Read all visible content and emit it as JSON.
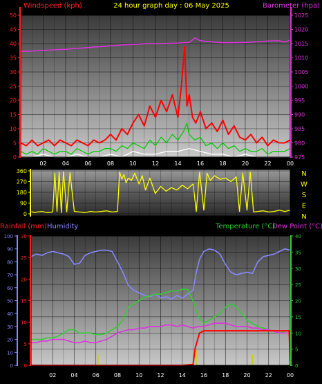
{
  "header": {
    "title": "24 hour graph day : 06 May 2025"
  },
  "colors": {
    "wind_gust": "#ff0000",
    "wind_avg": "#00cc00",
    "wind_min": "#ffffff",
    "barometer": "#dd33dd",
    "direction": "#ffff00",
    "rainfall": "#ff0000",
    "humidity": "#8888ff",
    "temperature": "#33cc33",
    "dewpoint": "#dd33dd",
    "rain_rate": "#cccc00"
  },
  "chart_data": [
    {
      "name": "wind-barometer",
      "type": "line",
      "title": "24 hour graph day : 06 May 2025",
      "ylabel_left": "Windspeed (kph)",
      "ylabel_right": "Barometer (hpa)",
      "yticks_left": [
        "0",
        "5",
        "10",
        "15",
        "20",
        "25",
        "30",
        "35",
        "40",
        "45",
        "50"
      ],
      "yticks_right": [
        "975",
        "980",
        "985",
        "990",
        "995",
        "1000",
        "1005",
        "1010",
        "1015",
        "1020",
        "1025"
      ],
      "ylim_left": [
        0,
        50
      ],
      "ylim_right": [
        975,
        1025
      ],
      "xlim": [
        0,
        24
      ],
      "xticks": [
        "02",
        "04",
        "06",
        "08",
        "10",
        "12",
        "14",
        "16",
        "18",
        "20",
        "22",
        "00"
      ],
      "grid": true,
      "series": [
        {
          "key": "barometer",
          "axis": "right",
          "x": [
            0,
            1,
            2,
            3,
            4,
            5,
            6,
            7,
            8,
            9,
            10,
            11,
            12,
            13,
            14,
            15,
            15.5,
            16,
            17,
            18,
            19,
            20,
            21,
            22,
            23,
            23.5,
            24
          ],
          "values": [
            1012.3,
            1012.4,
            1012.6,
            1012.8,
            1013.0,
            1013.3,
            1013.6,
            1013.9,
            1014.2,
            1014.5,
            1014.7,
            1014.9,
            1015.0,
            1015.1,
            1015.2,
            1015.4,
            1017.0,
            1016.0,
            1015.6,
            1015.3,
            1015.3,
            1015.4,
            1015.6,
            1015.9,
            1016.0,
            1015.5,
            1016.2
          ]
        },
        {
          "key": "wind_gust",
          "axis": "left",
          "x": [
            0,
            0.5,
            1,
            1.5,
            2,
            2.5,
            3,
            3.5,
            4,
            4.5,
            5,
            5.5,
            6,
            6.5,
            7,
            7.5,
            8,
            8.5,
            9,
            9.5,
            10,
            10.5,
            11,
            11.5,
            12,
            12.5,
            13,
            13.5,
            14,
            14.3,
            14.6,
            14.8,
            15,
            15.3,
            15.6,
            16,
            16.5,
            17,
            17.5,
            18,
            18.5,
            19,
            19.5,
            20,
            20.5,
            21,
            21.5,
            22,
            22.5,
            23,
            23.5,
            24
          ],
          "values": [
            5,
            4,
            6,
            4,
            5,
            6,
            4,
            6,
            5,
            4,
            6,
            5,
            4,
            6,
            5,
            6,
            8,
            6,
            10,
            8,
            12,
            15,
            11,
            18,
            14,
            20,
            16,
            22,
            14,
            25,
            39,
            18,
            22,
            14,
            12,
            16,
            10,
            12,
            9,
            13,
            8,
            11,
            7,
            6,
            8,
            5,
            7,
            4,
            6,
            5,
            5,
            6
          ]
        },
        {
          "key": "wind_avg",
          "axis": "left",
          "x": [
            0,
            0.5,
            1,
            1.5,
            2,
            2.5,
            3,
            3.5,
            4,
            4.5,
            5,
            5.5,
            6,
            6.5,
            7,
            7.5,
            8,
            8.5,
            9,
            9.5,
            10,
            10.5,
            11,
            11.5,
            12,
            12.5,
            13,
            13.5,
            14,
            14.5,
            14.8,
            15,
            15.5,
            16,
            16.5,
            17,
            17.5,
            18,
            18.5,
            19,
            19.5,
            20,
            20.5,
            21,
            21.5,
            22,
            22.5,
            23,
            23.5,
            24
          ],
          "values": [
            2,
            1,
            2,
            1,
            3,
            2,
            1,
            2,
            2,
            1,
            3,
            2,
            1,
            2,
            2,
            3,
            3,
            2,
            4,
            3,
            5,
            4,
            3,
            6,
            4,
            7,
            5,
            8,
            6,
            9,
            12,
            8,
            6,
            7,
            4,
            5,
            3,
            5,
            3,
            4,
            2,
            3,
            2,
            2,
            3,
            1,
            2,
            2,
            2,
            3
          ]
        },
        {
          "key": "wind_min",
          "axis": "left",
          "x": [
            0,
            1,
            2,
            3,
            4,
            5,
            6,
            7,
            8,
            9,
            10,
            11,
            12,
            13,
            14,
            15,
            16,
            17,
            18,
            19,
            20,
            21,
            22,
            23,
            24
          ],
          "values": [
            0,
            0,
            1,
            0,
            0,
            1,
            0,
            0,
            1,
            0,
            2,
            1,
            1,
            2,
            2,
            3,
            2,
            1,
            1,
            0,
            1,
            0,
            0,
            0,
            0
          ]
        }
      ]
    },
    {
      "name": "wind-direction",
      "type": "line",
      "yticks": [
        "0",
        "90",
        "180",
        "270",
        "360"
      ],
      "ylim": [
        0,
        360
      ],
      "compass": [
        "N",
        "W",
        "S",
        "E",
        "N"
      ],
      "xlim": [
        0,
        24
      ],
      "grid": true,
      "series": [
        {
          "key": "direction",
          "x": [
            0,
            0.3,
            0.6,
            1,
            1.5,
            2,
            2.2,
            2.4,
            2.6,
            2.8,
            3,
            3.3,
            3.6,
            4,
            4.5,
            5,
            5.5,
            6,
            6.5,
            7,
            7.5,
            8,
            8.2,
            8.4,
            8.6,
            8.8,
            9,
            9.3,
            9.6,
            10,
            10.3,
            10.6,
            11,
            11.5,
            12,
            12.5,
            13,
            13.5,
            14,
            14.5,
            15,
            15.3,
            15.6,
            16,
            16.3,
            16.6,
            17,
            17.5,
            18,
            18.5,
            19,
            19.3,
            19.6,
            20,
            20.3,
            20.6,
            21,
            21.5,
            22,
            22.5,
            23,
            23.5,
            24
          ],
          "values": [
            20,
            10,
            15,
            20,
            10,
            15,
            340,
            20,
            350,
            10,
            355,
            15,
            345,
            20,
            15,
            10,
            20,
            15,
            20,
            25,
            15,
            20,
            350,
            290,
            330,
            260,
            300,
            280,
            340,
            250,
            320,
            200,
            300,
            170,
            230,
            190,
            220,
            200,
            240,
            210,
            250,
            20,
            350,
            30,
            340,
            280,
            320,
            290,
            300,
            270,
            310,
            20,
            340,
            30,
            350,
            15,
            20,
            25,
            15,
            20,
            30,
            20,
            30
          ]
        }
      ]
    },
    {
      "name": "rain-humidity-temp",
      "type": "line",
      "ylabel_left_1": "Rainfall (mm)",
      "ylabel_left_2": "Humidity",
      "ylabel_right_1": "Temperature (°C)",
      "ylabel_right_2": "Dew Point (°C)",
      "yticks_humidity": [
        "0",
        "10",
        "20",
        "30",
        "40",
        "50",
        "60",
        "70",
        "80",
        "90",
        "100"
      ],
      "yticks_rain": [
        "0",
        "5",
        "10",
        "15",
        "20",
        "25",
        "30"
      ],
      "yticks_temp": [
        "0",
        "5",
        "10",
        "15",
        "20",
        "25",
        "30",
        "35",
        "40"
      ],
      "ylim_humidity": [
        0,
        100
      ],
      "ylim_rain": [
        0,
        30
      ],
      "ylim_temp": [
        0,
        40
      ],
      "xlim": [
        0,
        24
      ],
      "xticks": [
        "02",
        "04",
        "06",
        "08",
        "10",
        "12",
        "14",
        "16",
        "18",
        "20",
        "22",
        "00"
      ],
      "grid": true,
      "series": [
        {
          "key": "humidity",
          "axis": "humidity",
          "x": [
            0,
            0.5,
            1,
            1.5,
            2,
            2.5,
            3,
            3.5,
            4,
            4.5,
            5,
            5.5,
            6,
            6.5,
            7,
            7.5,
            8,
            8.5,
            9,
            9.5,
            10,
            10.5,
            11,
            11.5,
            12,
            12.5,
            13,
            13.5,
            14,
            14.5,
            15,
            15.3,
            15.6,
            16,
            16.5,
            17,
            17.5,
            18,
            18.5,
            19,
            19.5,
            20,
            20.5,
            21,
            21.5,
            22,
            22.5,
            23,
            23.5,
            24
          ],
          "values": [
            84,
            86,
            85,
            87,
            88,
            87,
            86,
            84,
            78,
            79,
            85,
            87,
            88,
            89,
            89,
            88,
            80,
            72,
            62,
            58,
            56,
            54,
            53,
            55,
            52,
            53,
            51,
            54,
            52,
            55,
            58,
            72,
            82,
            88,
            90,
            89,
            86,
            78,
            72,
            70,
            71,
            72,
            71,
            80,
            84,
            85,
            86,
            88,
            90,
            89
          ]
        },
        {
          "key": "temperature",
          "axis": "temp",
          "x": [
            0,
            0.5,
            1,
            1.5,
            2,
            2.5,
            3,
            3.5,
            4,
            4.5,
            5,
            5.5,
            6,
            6.5,
            7,
            7.5,
            8,
            8.5,
            9,
            9.5,
            10,
            10.5,
            11,
            11.5,
            12,
            12.5,
            13,
            13.5,
            14,
            14.5,
            15,
            15.5,
            16,
            16.5,
            17,
            17.5,
            18,
            18.5,
            19,
            19.5,
            20,
            20.5,
            21,
            21.5,
            22,
            22.5,
            23,
            23.5,
            24
          ],
          "values": [
            8,
            8,
            8,
            8.5,
            8.5,
            9,
            10,
            11,
            11,
            10,
            10,
            10,
            9.5,
            9.5,
            10,
            11,
            12,
            14,
            18,
            19,
            20,
            21,
            21.5,
            22,
            22,
            22.5,
            23,
            23,
            23.5,
            23.5,
            20,
            15,
            13,
            14,
            15,
            16,
            18,
            19,
            18,
            16,
            14,
            13,
            12,
            11.5,
            11,
            10.5,
            10,
            10.5,
            11
          ]
        },
        {
          "key": "dewpoint",
          "axis": "temp",
          "x": [
            0,
            0.5,
            1,
            1.5,
            2,
            2.5,
            3,
            3.5,
            4,
            4.5,
            5,
            5.5,
            6,
            6.5,
            7,
            7.5,
            8,
            8.5,
            9,
            9.5,
            10,
            10.5,
            11,
            11.5,
            12,
            12.5,
            13,
            13.5,
            14,
            14.5,
            15,
            15.5,
            16,
            16.5,
            17,
            17.5,
            18,
            18.5,
            19,
            19.5,
            20,
            20.5,
            21,
            21.5,
            22,
            22.5,
            23,
            23.5,
            24
          ],
          "values": [
            7,
            7,
            7.5,
            7.5,
            8,
            8,
            8,
            7.5,
            7,
            7,
            7.5,
            7,
            7,
            7.5,
            8,
            9,
            10,
            10.5,
            11,
            11,
            11.5,
            11.5,
            12,
            12,
            12,
            12.5,
            12.5,
            12,
            12.5,
            12,
            11.5,
            12,
            12,
            12.5,
            13,
            13,
            13,
            12.5,
            12,
            12,
            12,
            11.5,
            11.5,
            11,
            11,
            10.5,
            10,
            10,
            10
          ]
        },
        {
          "key": "rainfall",
          "axis": "rain",
          "x": [
            0,
            1,
            2,
            3,
            4,
            5,
            6,
            7,
            8,
            9,
            10,
            11,
            12,
            13,
            14,
            15,
            15.2,
            15.6,
            16,
            17,
            18,
            19,
            20,
            21,
            22,
            23,
            23.9,
            24
          ],
          "values": [
            0,
            0,
            0,
            0,
            0,
            0,
            0,
            0,
            0,
            0,
            0,
            0,
            0,
            0,
            0,
            0.2,
            4,
            7.5,
            8,
            8,
            8,
            8,
            8,
            8,
            8,
            8,
            8,
            0
          ]
        },
        {
          "key": "rain_rate",
          "axis": "rain",
          "bars": true,
          "x": [
            6.2,
            15.3,
            20.5
          ],
          "values": [
            2.5,
            3.5,
            2.5
          ]
        }
      ]
    }
  ]
}
